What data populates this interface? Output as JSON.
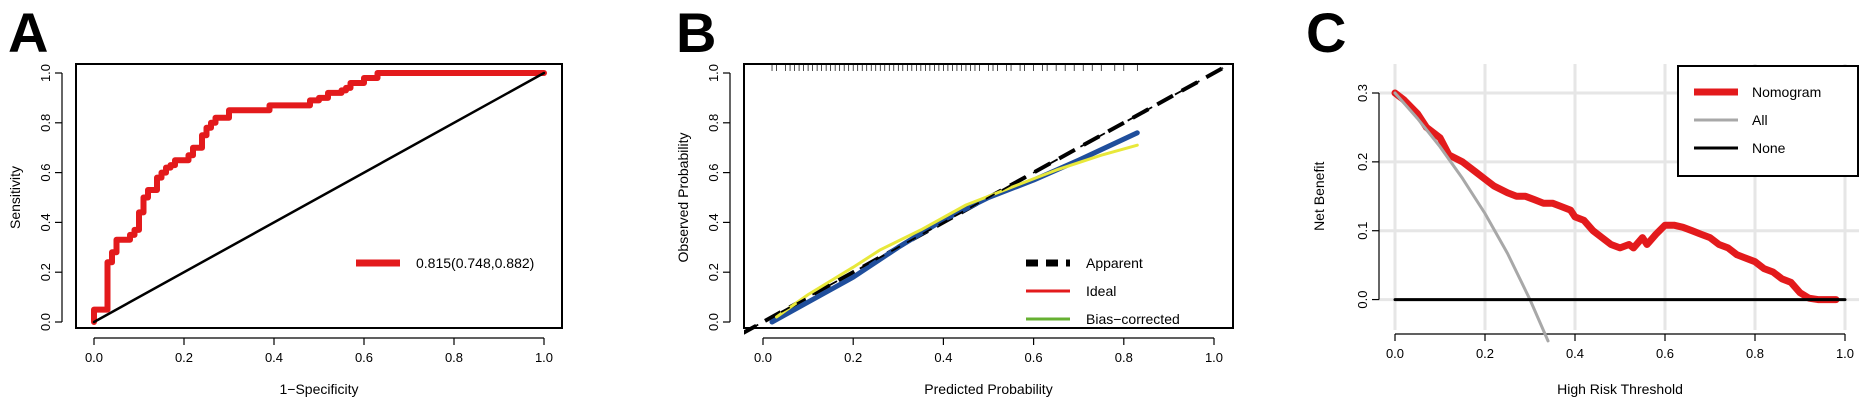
{
  "panels": {
    "a": {
      "letter": "A"
    },
    "b": {
      "letter": "B"
    },
    "c": {
      "letter": "C"
    }
  },
  "chart_data": [
    {
      "type": "line",
      "panel": "A",
      "title": "",
      "xlabel": "1−Specificity",
      "ylabel": "Sensitivity",
      "xlim": [
        0,
        1
      ],
      "ylim": [
        0,
        1
      ],
      "x_ticks": [
        "0.0",
        "0.2",
        "0.4",
        "0.6",
        "0.8",
        "1.0"
      ],
      "y_ticks": [
        "0.0",
        "0.2",
        "0.4",
        "0.6",
        "0.8",
        "1.0"
      ],
      "legend_placement": "bottom-right",
      "legend": [
        {
          "label": "0.815(0.748,0.882)",
          "color": "#e31a1c"
        }
      ],
      "series": [
        {
          "name": "0.815(0.748,0.882)",
          "color": "#e31a1c",
          "x": [
            0.0,
            0.0,
            0.03,
            0.03,
            0.04,
            0.04,
            0.05,
            0.05,
            0.08,
            0.08,
            0.09,
            0.09,
            0.1,
            0.1,
            0.11,
            0.11,
            0.12,
            0.12,
            0.14,
            0.14,
            0.15,
            0.15,
            0.16,
            0.16,
            0.17,
            0.17,
            0.18,
            0.18,
            0.21,
            0.21,
            0.22,
            0.22,
            0.24,
            0.24,
            0.25,
            0.25,
            0.26,
            0.26,
            0.27,
            0.27,
            0.3,
            0.3,
            0.31,
            0.31,
            0.39,
            0.39,
            0.48,
            0.48,
            0.5,
            0.5,
            0.52,
            0.52,
            0.55,
            0.55,
            0.56,
            0.56,
            0.57,
            0.57,
            0.6,
            0.6,
            0.63,
            0.63,
            1.0
          ],
          "y": [
            0.0,
            0.05,
            0.05,
            0.24,
            0.24,
            0.28,
            0.28,
            0.33,
            0.33,
            0.35,
            0.35,
            0.37,
            0.37,
            0.44,
            0.44,
            0.5,
            0.5,
            0.53,
            0.53,
            0.58,
            0.58,
            0.6,
            0.6,
            0.62,
            0.62,
            0.63,
            0.63,
            0.65,
            0.65,
            0.67,
            0.67,
            0.7,
            0.7,
            0.75,
            0.75,
            0.78,
            0.78,
            0.8,
            0.8,
            0.82,
            0.82,
            0.85,
            0.85,
            0.85,
            0.85,
            0.87,
            0.87,
            0.89,
            0.89,
            0.9,
            0.9,
            0.92,
            0.92,
            0.93,
            0.93,
            0.94,
            0.94,
            0.96,
            0.96,
            0.98,
            0.98,
            1.0,
            1.0
          ]
        },
        {
          "name": "",
          "color": "#000000",
          "x": [
            0,
            1
          ],
          "y": [
            0,
            1
          ]
        }
      ]
    },
    {
      "type": "line",
      "panel": "B",
      "title": "",
      "xlabel": "Predicted Probability",
      "ylabel": "Observed Probability",
      "xlim": [
        0,
        1
      ],
      "ylim": [
        0,
        1
      ],
      "x_ticks": [
        "0.0",
        "0.2",
        "0.4",
        "0.6",
        "0.8",
        "1.0"
      ],
      "y_ticks": [
        "0.0",
        "0.2",
        "0.4",
        "0.6",
        "0.8",
        "1.0"
      ],
      "legend_placement": "bottom-right",
      "rug": true,
      "legend": [
        {
          "label": "Apparent",
          "color": "#000000",
          "style": "dashed"
        },
        {
          "label": "Ideal",
          "color": "#e31a1c",
          "style": "solid"
        },
        {
          "label": "Bias−corrected",
          "color": "#66b032",
          "style": "solid"
        }
      ],
      "series": [
        {
          "name": "",
          "color": "#000000",
          "style": "dashed",
          "x": [
            -0.05,
            1.02
          ],
          "y": [
            -0.05,
            1.02
          ]
        },
        {
          "name": "Apparent",
          "color": "#1f4e9c",
          "x": [
            0.02,
            0.1,
            0.2,
            0.3,
            0.4,
            0.5,
            0.6,
            0.7,
            0.83
          ],
          "y": [
            0.0,
            0.08,
            0.18,
            0.3,
            0.41,
            0.5,
            0.57,
            0.65,
            0.76
          ]
        },
        {
          "name": "Bias−corrected",
          "color": "#e8e83a",
          "x": [
            0.03,
            0.1,
            0.2,
            0.26,
            0.35,
            0.45,
            0.55,
            0.65,
            0.75,
            0.83
          ],
          "y": [
            0.02,
            0.11,
            0.22,
            0.29,
            0.37,
            0.47,
            0.54,
            0.61,
            0.67,
            0.71
          ]
        }
      ],
      "rug_x": [
        0.02,
        0.03,
        0.05,
        0.06,
        0.07,
        0.08,
        0.09,
        0.1,
        0.11,
        0.12,
        0.13,
        0.14,
        0.15,
        0.16,
        0.17,
        0.18,
        0.19,
        0.2,
        0.21,
        0.22,
        0.23,
        0.24,
        0.25,
        0.26,
        0.27,
        0.28,
        0.29,
        0.3,
        0.31,
        0.32,
        0.33,
        0.34,
        0.35,
        0.36,
        0.37,
        0.38,
        0.39,
        0.4,
        0.41,
        0.42,
        0.43,
        0.44,
        0.45,
        0.46,
        0.47,
        0.48,
        0.5,
        0.51,
        0.52,
        0.54,
        0.55,
        0.57,
        0.58,
        0.6,
        0.62,
        0.63,
        0.65,
        0.67,
        0.69,
        0.71,
        0.73,
        0.75,
        0.78,
        0.8,
        0.83
      ]
    },
    {
      "type": "line",
      "panel": "C",
      "title": "",
      "xlabel": "High Risk Threshold",
      "ylabel": "Net Benefit",
      "xlim": [
        0,
        1
      ],
      "ylim": [
        -0.05,
        0.3
      ],
      "x_ticks": [
        "0.0",
        "0.2",
        "0.4",
        "0.6",
        "0.8",
        "1.0"
      ],
      "y_ticks": [
        "0.0",
        "0.1",
        "0.2",
        "0.3"
      ],
      "grid": true,
      "legend_placement": "top-right",
      "legend": [
        {
          "label": "Nomogram",
          "color": "#e31a1c"
        },
        {
          "label": "All",
          "color": "#a8a8a8"
        },
        {
          "label": "None",
          "color": "#000000"
        }
      ],
      "series": [
        {
          "name": "Nomogram",
          "color": "#e31a1c",
          "x": [
            0.0,
            0.02,
            0.05,
            0.07,
            0.1,
            0.12,
            0.15,
            0.18,
            0.2,
            0.22,
            0.25,
            0.27,
            0.29,
            0.31,
            0.33,
            0.35,
            0.37,
            0.39,
            0.4,
            0.42,
            0.44,
            0.46,
            0.48,
            0.5,
            0.52,
            0.53,
            0.55,
            0.56,
            0.58,
            0.6,
            0.62,
            0.64,
            0.66,
            0.68,
            0.7,
            0.72,
            0.74,
            0.76,
            0.78,
            0.8,
            0.82,
            0.84,
            0.86,
            0.88,
            0.9,
            0.92,
            0.94,
            0.96,
            0.98
          ],
          "y": [
            0.3,
            0.29,
            0.27,
            0.25,
            0.235,
            0.21,
            0.2,
            0.185,
            0.175,
            0.165,
            0.155,
            0.15,
            0.15,
            0.145,
            0.14,
            0.14,
            0.135,
            0.13,
            0.12,
            0.115,
            0.1,
            0.09,
            0.08,
            0.075,
            0.08,
            0.075,
            0.09,
            0.08,
            0.095,
            0.108,
            0.108,
            0.105,
            0.1,
            0.095,
            0.09,
            0.08,
            0.075,
            0.065,
            0.06,
            0.055,
            0.045,
            0.04,
            0.03,
            0.025,
            0.01,
            0.002,
            0.0,
            0.0,
            0.0
          ]
        },
        {
          "name": "All",
          "color": "#a8a8a8",
          "x": [
            0.0,
            0.05,
            0.1,
            0.15,
            0.2,
            0.25,
            0.3,
            0.34
          ],
          "y": [
            0.3,
            0.263,
            0.222,
            0.176,
            0.125,
            0.067,
            0.0,
            -0.06
          ]
        },
        {
          "name": "None",
          "color": "#000000",
          "x": [
            0.0,
            1.0
          ],
          "y": [
            0.0,
            0.0
          ]
        }
      ]
    }
  ]
}
